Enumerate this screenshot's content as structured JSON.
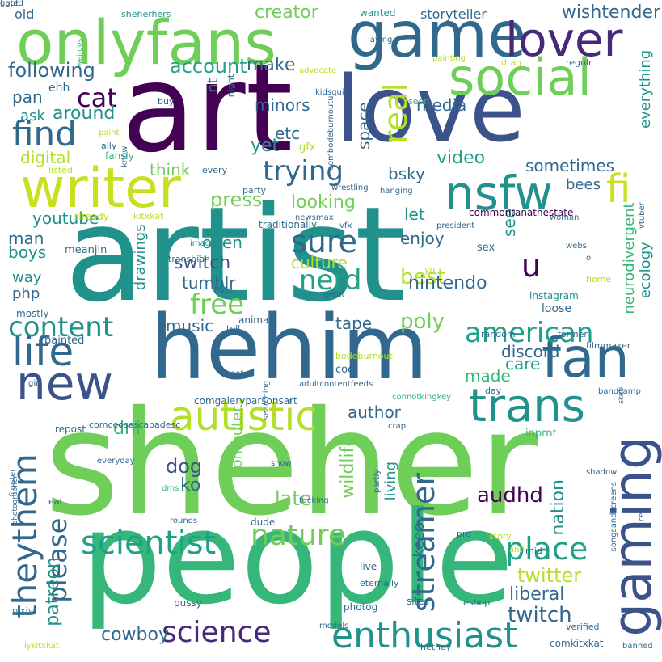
{
  "palette": {
    "dark_purple": "#440154",
    "indigo": "#3b528b",
    "blue": "#31688e",
    "teal": "#21918c",
    "green_teal": "#1fa187",
    "green": "#35b779",
    "lime": "#6ece58",
    "yellow_green": "#b5de2b",
    "yellow": "#fde725"
  },
  "words": [
    {
      "t": "sheher",
      "c": "#6ece58"
    },
    {
      "t": "artist",
      "c": "#21918c"
    },
    {
      "t": "people",
      "c": "#35b779"
    },
    {
      "t": "art",
      "c": "#440154"
    },
    {
      "t": "hehim",
      "c": "#31688e"
    },
    {
      "t": "love",
      "c": "#3b528b"
    },
    {
      "t": "game",
      "c": "#31688e"
    },
    {
      "t": "onlyfans",
      "c": "#6ece58"
    },
    {
      "t": "lover",
      "c": "#482878"
    },
    {
      "t": "social",
      "c": "#6ece58"
    },
    {
      "t": "writer",
      "c": "#c8e020"
    },
    {
      "t": "nsfw",
      "c": "#21918c"
    },
    {
      "t": "fan",
      "c": "#31688e"
    },
    {
      "t": "new",
      "c": "#3b528b"
    },
    {
      "t": "life",
      "c": "#31688e"
    },
    {
      "t": "gaming",
      "c": "#3b528b"
    },
    {
      "t": "trans",
      "c": "#21918c"
    },
    {
      "t": "autistic",
      "c": "#b5de2b"
    },
    {
      "t": "enthusiast",
      "c": "#21918c"
    },
    {
      "t": "scientist",
      "c": "#1fa187"
    },
    {
      "t": "nature",
      "c": "#6ece58"
    },
    {
      "t": "streamer",
      "c": "#31688e"
    },
    {
      "t": "place",
      "c": "#1fa187"
    },
    {
      "t": "theythem",
      "c": "#31688e"
    },
    {
      "t": "science",
      "c": "#482878"
    },
    {
      "t": "american",
      "c": "#1fa187"
    },
    {
      "t": "content",
      "c": "#21918c"
    },
    {
      "t": "nerd",
      "c": "#1fa187"
    },
    {
      "t": "sure",
      "c": "#31688e"
    },
    {
      "t": "free",
      "c": "#6ece58"
    },
    {
      "t": "trying",
      "c": "#31688e"
    },
    {
      "t": "find",
      "c": "#31688e"
    },
    {
      "t": "cat",
      "c": "#440154"
    },
    {
      "t": "real",
      "c": "#b5de2b"
    },
    {
      "t": "fi",
      "c": "#c8e020"
    },
    {
      "t": "u",
      "c": "#440154"
    },
    {
      "t": "please",
      "c": "#31688e"
    },
    {
      "t": "twitch",
      "c": "#31688e"
    },
    {
      "t": "liberal",
      "c": "#31688e"
    },
    {
      "t": "twitter",
      "c": "#b5de2b"
    },
    {
      "t": "audhd",
      "c": "#440154"
    },
    {
      "t": "patreon",
      "c": "#21918c"
    },
    {
      "t": "cowboy",
      "c": "#31688e"
    },
    {
      "t": "account",
      "c": "#1fa187"
    },
    {
      "t": "following",
      "c": "#31688e"
    },
    {
      "t": "creator",
      "c": "#6ece58"
    },
    {
      "t": "wishtender",
      "c": "#31688e"
    },
    {
      "t": "media",
      "c": "#31688e"
    },
    {
      "t": "around",
      "c": "#21918c"
    },
    {
      "t": "video",
      "c": "#1fa187"
    },
    {
      "t": "sometimes",
      "c": "#31688e"
    },
    {
      "t": "digital",
      "c": "#b5de2b"
    },
    {
      "t": "yet",
      "c": "#21918c"
    },
    {
      "t": "minors",
      "c": "#31688e"
    },
    {
      "t": "press",
      "c": "#6ece58"
    },
    {
      "t": "looking",
      "c": "#6ece58"
    },
    {
      "t": "culture",
      "c": "#b5de2b"
    },
    {
      "t": "switch",
      "c": "#3b528b"
    },
    {
      "t": "open",
      "c": "#21918c"
    },
    {
      "t": "best",
      "c": "#b5de2b"
    },
    {
      "t": "poly",
      "c": "#6ece58"
    },
    {
      "t": "nintendo",
      "c": "#31688e"
    },
    {
      "t": "tumblr",
      "c": "#31688e"
    },
    {
      "t": "music",
      "c": "#31688e"
    },
    {
      "t": "discord",
      "c": "#31688e"
    },
    {
      "t": "tape",
      "c": "#31688e"
    },
    {
      "t": "care",
      "c": "#1fa187"
    },
    {
      "t": "made",
      "c": "#35b779"
    },
    {
      "t": "author",
      "c": "#31688e"
    },
    {
      "t": "nation",
      "c": "#21918c"
    },
    {
      "t": "dog",
      "c": "#3b528b"
    },
    {
      "t": "ko",
      "c": "#31688e"
    },
    {
      "t": "late",
      "c": "#6ece58"
    },
    {
      "t": "living",
      "c": "#21918c"
    },
    {
      "t": "keep",
      "c": "#31688e"
    },
    {
      "t": "dni",
      "c": "#35b779"
    },
    {
      "t": "drawings",
      "c": "#21918c"
    },
    {
      "t": "computer",
      "c": "#6ece58"
    },
    {
      "t": "wildlife",
      "c": "#6ece58"
    },
    {
      "t": "neurodivergent",
      "c": "#35b779"
    },
    {
      "t": "ecology",
      "c": "#21918c"
    },
    {
      "t": "everything",
      "c": "#21918c"
    },
    {
      "t": "see",
      "c": "#21918c"
    },
    {
      "t": "enjoy",
      "c": "#31688e"
    },
    {
      "t": "let",
      "c": "#21918c"
    },
    {
      "t": "bsky",
      "c": "#31688e"
    },
    {
      "t": "think",
      "c": "#6ece58"
    },
    {
      "t": "etc",
      "c": "#31688e"
    },
    {
      "t": "space",
      "c": "#31688e"
    },
    {
      "t": "make",
      "c": "#31688e"
    },
    {
      "t": "pan",
      "c": "#31688e"
    },
    {
      "t": "ask",
      "c": "#21918c"
    },
    {
      "t": "nt",
      "c": "#21918c"
    },
    {
      "t": "youtube",
      "c": "#21918c"
    },
    {
      "t": "man",
      "c": "#31688e"
    },
    {
      "t": "boys",
      "c": "#21918c"
    },
    {
      "t": "way",
      "c": "#21918c"
    },
    {
      "t": "php",
      "c": "#31688e"
    },
    {
      "t": "bees",
      "c": "#31688e"
    },
    {
      "t": "old",
      "c": "#31688e"
    },
    {
      "t": "storyteller",
      "c": "#31688e"
    },
    {
      "t": "sheherhers",
      "c": "#21918c"
    },
    {
      "t": "wanted",
      "c": "#21918c"
    },
    {
      "t": "laying",
      "c": "#31688e"
    },
    {
      "t": "ehh",
      "c": "#31688e"
    },
    {
      "t": "advocate",
      "c": "#b5de2b"
    },
    {
      "t": "drag",
      "c": "#b5de2b"
    },
    {
      "t": "regulr",
      "c": "#31688e"
    },
    {
      "t": "painting",
      "c": "#b5de2b"
    },
    {
      "t": "seen",
      "c": "#35b779"
    },
    {
      "t": "buy",
      "c": "#31688e"
    },
    {
      "t": "night",
      "c": "#31688e"
    },
    {
      "t": "kidsquid",
      "c": "#31688e"
    },
    {
      "t": "combodeburnoutu",
      "c": "#31688e"
    },
    {
      "t": "gfx",
      "c": "#b5de2b"
    },
    {
      "t": "paint",
      "c": "#b5de2b"
    },
    {
      "t": "ally",
      "c": "#31688e"
    },
    {
      "t": "fansly",
      "c": "#35b779"
    },
    {
      "t": "listed",
      "c": "#b5de2b"
    },
    {
      "t": "know",
      "c": "#31688e"
    },
    {
      "t": "every",
      "c": "#31688e"
    },
    {
      "t": "party",
      "c": "#31688e"
    },
    {
      "t": "wrestling",
      "c": "#31688e"
    },
    {
      "t": "hanging",
      "c": "#31688e"
    },
    {
      "t": "already",
      "c": "#b5de2b"
    },
    {
      "t": "kitxkat",
      "c": "#b5de2b"
    },
    {
      "t": "newsmax",
      "c": "#31688e"
    },
    {
      "t": "traditionally",
      "c": "#31688e"
    },
    {
      "t": "commontanathestate",
      "c": "#440154"
    },
    {
      "t": "woman",
      "c": "#31688e"
    },
    {
      "t": "president",
      "c": "#31688e"
    },
    {
      "t": "vfx",
      "c": "#31688e"
    },
    {
      "t": "sex",
      "c": "#31688e"
    },
    {
      "t": "webs",
      "c": "#31688e"
    },
    {
      "t": "vtuber",
      "c": "#31688e"
    },
    {
      "t": "meanjin",
      "c": "#31688e"
    },
    {
      "t": "transbian",
      "c": "#31688e"
    },
    {
      "t": "images",
      "c": "#21918c"
    },
    {
      "t": "yo",
      "c": "#b5de2b"
    },
    {
      "t": "ol",
      "c": "#31688e"
    },
    {
      "t": "home",
      "c": "#b5de2b"
    },
    {
      "t": "hate",
      "c": "#31688e"
    },
    {
      "t": "great",
      "c": "#31688e"
    },
    {
      "t": "instagram",
      "c": "#21918c"
    },
    {
      "t": "loose",
      "c": "#31688e"
    },
    {
      "t": "mostly",
      "c": "#31688e"
    },
    {
      "t": "tell",
      "c": "#31688e"
    },
    {
      "t": "animal",
      "c": "#31688e"
    },
    {
      "t": "random",
      "c": "#31688e"
    },
    {
      "t": "former",
      "c": "#31688e"
    },
    {
      "t": "filmmaker",
      "c": "#31688e"
    },
    {
      "t": "bodeburnout",
      "c": "#b5de2b"
    },
    {
      "t": "painted",
      "c": "#31688e"
    },
    {
      "t": "cool",
      "c": "#31688e"
    },
    {
      "t": "got",
      "c": "#31688e"
    },
    {
      "t": "girl",
      "c": "#31688e"
    },
    {
      "t": "searching",
      "c": "#31688e"
    },
    {
      "t": "adultcontentfeeds",
      "c": "#31688e"
    },
    {
      "t": "day",
      "c": "#31688e"
    },
    {
      "t": "bandcamp",
      "c": "#31688e"
    },
    {
      "t": "photographer",
      "c": "#31688e"
    },
    {
      "t": "filmster",
      "c": "#31688e"
    },
    {
      "t": "comgaleryparsonsart",
      "c": "#31688e"
    },
    {
      "t": "connotkingkey",
      "c": "#35b779"
    },
    {
      "t": "skeb",
      "c": "#31688e"
    },
    {
      "t": "repost",
      "c": "#31688e"
    },
    {
      "t": "comceosescapadesc",
      "c": "#31688e"
    },
    {
      "t": "crap",
      "c": "#31688e"
    },
    {
      "t": "inprnt",
      "c": "#35b779"
    },
    {
      "t": "everyday",
      "c": "#31688e"
    },
    {
      "t": "show",
      "c": "#31688e"
    },
    {
      "t": "partly",
      "c": "#31688e"
    },
    {
      "t": "shadow",
      "c": "#31688e"
    },
    {
      "t": "songsandscreens",
      "c": "#31688e"
    },
    {
      "t": "ceo",
      "c": "#31688e"
    },
    {
      "t": "dms",
      "c": "#35b779"
    },
    {
      "t": "eat",
      "c": "#31688e"
    },
    {
      "t": "fucking",
      "c": "#31688e"
    },
    {
      "t": "rounds",
      "c": "#31688e"
    },
    {
      "t": "dude",
      "c": "#31688e"
    },
    {
      "t": "pro",
      "c": "#31688e"
    },
    {
      "t": "anti",
      "c": "#b5de2b"
    },
    {
      "t": "story",
      "c": "#b5de2b"
    },
    {
      "t": "mid",
      "c": "#31688e"
    },
    {
      "t": "live",
      "c": "#31688e"
    },
    {
      "t": "eternally",
      "c": "#31688e"
    },
    {
      "t": "pussy",
      "c": "#31688e"
    },
    {
      "t": "photog",
      "c": "#31688e"
    },
    {
      "t": "sites",
      "c": "#31688e"
    },
    {
      "t": "eshop",
      "c": "#31688e"
    },
    {
      "t": "pixiv",
      "c": "#21918c"
    },
    {
      "t": "models",
      "c": "#31688e"
    },
    {
      "t": "verified",
      "c": "#31688e"
    },
    {
      "t": "comkitxkat",
      "c": "#31688e"
    },
    {
      "t": "lykitxkat",
      "c": "#b5de2b"
    },
    {
      "t": "hethey",
      "c": "#31688e"
    },
    {
      "t": "banned",
      "c": "#31688e"
    },
    {
      "t": "weirdos",
      "c": "#35b779"
    },
    {
      "t": "hated",
      "c": "#31688e"
    },
    {
      "t": "ggpt",
      "c": "#31688e"
    }
  ]
}
